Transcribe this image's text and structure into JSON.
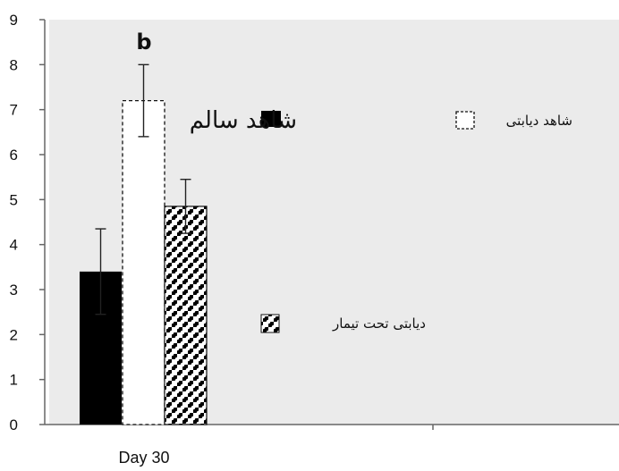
{
  "chart_data": {
    "type": "bar",
    "categories": [
      "Day 30"
    ],
    "series": [
      {
        "name": "شاهد سالم",
        "values": [
          3.4
        ],
        "error": [
          0.95
        ],
        "fill": "#000000",
        "pattern": "solid"
      },
      {
        "name": "شاهد دیابتی",
        "values": [
          7.2
        ],
        "error": [
          0.8
        ],
        "fill": "#ffffff",
        "pattern": "dashed-outline"
      },
      {
        "name": "دیابتی تحت تیمار",
        "values": [
          4.85
        ],
        "error": [
          0.6
        ],
        "fill": "#ffffff",
        "pattern": "checker-diamond"
      }
    ],
    "significance_label": "b",
    "ylim": [
      0,
      9
    ],
    "yticks": [
      "0",
      "1",
      "2",
      "3",
      "4",
      "5",
      "6",
      "7",
      "8",
      "9"
    ],
    "plot_background": "#ebebeb",
    "legend_placement": "right"
  }
}
